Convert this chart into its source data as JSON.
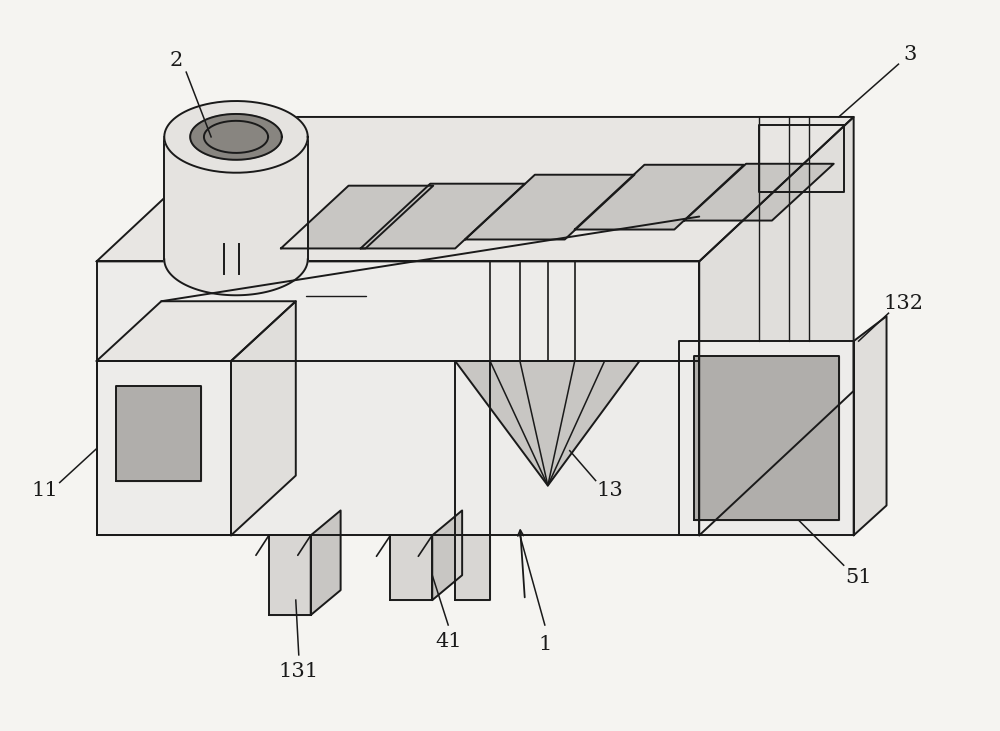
{
  "bg_color": "#f5f4f1",
  "line_color": "#1a1a1a",
  "fill_main_top": "#e8e6e3",
  "fill_main_front": "#edecea",
  "fill_main_right": "#e0dedb",
  "fill_light": "#f0efec",
  "fill_dark": "#d8d6d3",
  "fill_slot": "#c8c6c3",
  "fill_hole": "#b0aeab",
  "fill_cylinder_outer": "#e5e3e0",
  "fill_cylinder_inner": "#888580",
  "label_fontsize": 15,
  "figsize": [
    10.0,
    7.31
  ],
  "dpi": 100
}
